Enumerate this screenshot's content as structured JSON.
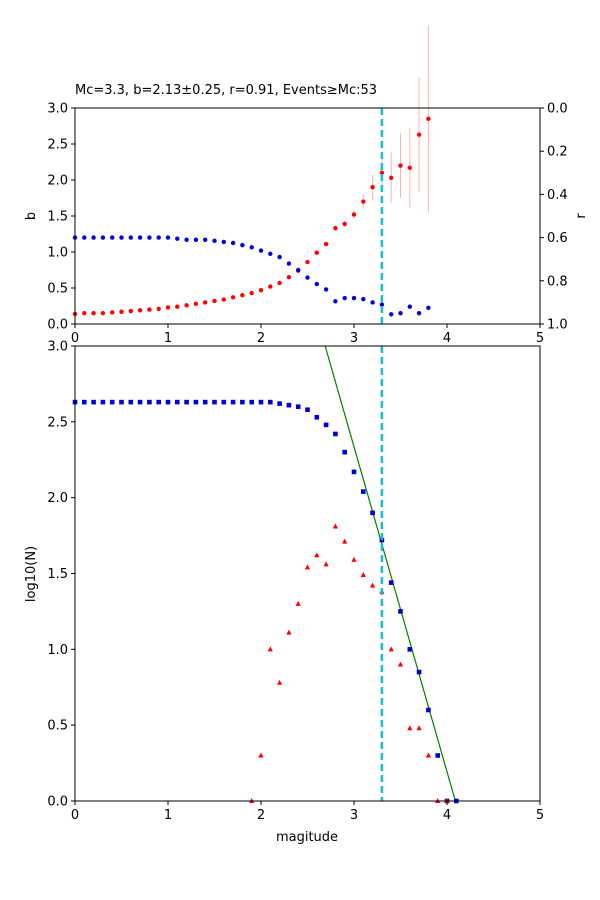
{
  "chart_data": [
    {
      "type": "scatter",
      "title": "Mc=3.3, b=2.13±0.25, r=0.91, Events≥Mc:53",
      "xlabel": "",
      "ylabel": "b",
      "y2label": "r",
      "xlim": [
        0,
        5
      ],
      "ylim": [
        0,
        3.0
      ],
      "y2lim": [
        1.0,
        0.0
      ],
      "y2_inverted": true,
      "xticks": [
        "0",
        "1",
        "2",
        "3",
        "4",
        "5"
      ],
      "yticks": [
        "0.0",
        "0.5",
        "1.0",
        "1.5",
        "2.0",
        "2.5",
        "3.0"
      ],
      "y2ticks": [
        "0.0",
        "0.2",
        "0.4",
        "0.6",
        "0.8",
        "1.0"
      ],
      "mc_line": 3.3,
      "series": [
        {
          "color": "#ff0000",
          "marker": "dot",
          "axis": "left",
          "x": [
            0.0,
            0.1,
            0.2,
            0.3,
            0.4,
            0.5,
            0.6,
            0.7,
            0.8,
            0.9,
            1.0,
            1.1,
            1.2,
            1.3,
            1.4,
            1.5,
            1.6,
            1.7,
            1.8,
            1.9,
            2.0,
            2.1,
            2.2,
            2.3,
            2.4,
            2.5,
            2.6,
            2.7,
            2.8,
            2.9,
            3.0,
            3.1,
            3.2,
            3.3,
            3.4,
            3.5,
            3.6,
            3.7,
            3.8
          ],
          "y": [
            0.14,
            0.15,
            0.15,
            0.15,
            0.16,
            0.17,
            0.18,
            0.19,
            0.2,
            0.21,
            0.23,
            0.24,
            0.26,
            0.28,
            0.3,
            0.32,
            0.34,
            0.37,
            0.4,
            0.43,
            0.47,
            0.52,
            0.57,
            0.65,
            0.74,
            0.86,
            0.99,
            1.11,
            1.33,
            1.39,
            1.52,
            1.7,
            1.9,
            2.1,
            2.03,
            2.2,
            2.17,
            2.63,
            2.85
          ],
          "err": [
            0,
            0,
            0,
            0,
            0,
            0,
            0,
            0,
            0,
            0,
            0,
            0,
            0,
            0,
            0,
            0,
            0,
            0,
            0,
            0,
            0,
            0,
            0,
            0,
            0,
            0,
            0,
            0,
            0,
            0.04,
            0.06,
            0.1,
            0.18,
            0.25,
            0.35,
            0.45,
            0.55,
            0.8,
            1.3
          ]
        },
        {
          "color": "#0000cc",
          "marker": "dot",
          "axis": "right",
          "x": [
            0.0,
            0.1,
            0.2,
            0.3,
            0.4,
            0.5,
            0.6,
            0.7,
            0.8,
            0.9,
            1.0,
            1.1,
            1.2,
            1.3,
            1.4,
            1.5,
            1.6,
            1.7,
            1.8,
            1.9,
            2.0,
            2.1,
            2.2,
            2.3,
            2.4,
            2.5,
            2.6,
            2.7,
            2.8,
            2.9,
            3.0,
            3.1,
            3.2,
            3.3,
            3.4,
            3.5,
            3.6,
            3.7,
            3.8
          ],
          "y": [
            0.6,
            0.6,
            0.6,
            0.6,
            0.6,
            0.6,
            0.6,
            0.6,
            0.6,
            0.6,
            0.6,
            0.605,
            0.61,
            0.61,
            0.61,
            0.615,
            0.62,
            0.625,
            0.635,
            0.645,
            0.66,
            0.675,
            0.69,
            0.72,
            0.75,
            0.785,
            0.815,
            0.84,
            0.895,
            0.88,
            0.88,
            0.885,
            0.9,
            0.91,
            0.955,
            0.95,
            0.92,
            0.95,
            0.925
          ]
        }
      ]
    },
    {
      "type": "scatter",
      "title": "",
      "xlabel": "magitude",
      "ylabel": "log10(N)",
      "xlim": [
        0,
        5
      ],
      "ylim": [
        0,
        3.0
      ],
      "xticks": [
        "0",
        "1",
        "2",
        "3",
        "4",
        "5"
      ],
      "yticks": [
        "0.0",
        "0.5",
        "1.0",
        "1.5",
        "2.0",
        "2.5",
        "3.0"
      ],
      "mc_line": 3.3,
      "fit_line": {
        "color": "#008000",
        "x": [
          2.69,
          4.09
        ],
        "y": [
          3.0,
          0.0
        ]
      },
      "series": [
        {
          "color": "#0000cc",
          "marker": "square",
          "x": [
            0.0,
            0.1,
            0.2,
            0.3,
            0.4,
            0.5,
            0.6,
            0.7,
            0.8,
            0.9,
            1.0,
            1.1,
            1.2,
            1.3,
            1.4,
            1.5,
            1.6,
            1.7,
            1.8,
            1.9,
            2.0,
            2.1,
            2.2,
            2.3,
            2.4,
            2.5,
            2.6,
            2.7,
            2.8,
            2.9,
            3.0,
            3.1,
            3.2,
            3.3,
            3.4,
            3.5,
            3.6,
            3.7,
            3.8,
            3.9,
            4.0,
            4.1
          ],
          "y": [
            2.63,
            2.63,
            2.63,
            2.63,
            2.63,
            2.63,
            2.63,
            2.63,
            2.63,
            2.63,
            2.63,
            2.63,
            2.63,
            2.63,
            2.63,
            2.63,
            2.63,
            2.63,
            2.63,
            2.63,
            2.63,
            2.63,
            2.62,
            2.61,
            2.6,
            2.58,
            2.53,
            2.48,
            2.42,
            2.3,
            2.17,
            2.04,
            1.9,
            1.72,
            1.44,
            1.25,
            1.0,
            0.85,
            0.6,
            0.3,
            0.0,
            0.0
          ]
        },
        {
          "color": "#ff0000",
          "marker": "triangle",
          "x": [
            1.9,
            2.0,
            2.1,
            2.2,
            2.3,
            2.4,
            2.5,
            2.6,
            2.7,
            2.8,
            2.9,
            3.0,
            3.1,
            3.2,
            3.3,
            3.4,
            3.5,
            3.6,
            3.7,
            3.8,
            3.9,
            4.0
          ],
          "y": [
            0.0,
            0.3,
            1.0,
            0.78,
            1.11,
            1.3,
            1.54,
            1.62,
            1.56,
            1.81,
            1.71,
            1.59,
            1.49,
            1.42,
            1.38,
            1.0,
            0.9,
            0.48,
            0.48,
            0.3,
            0.0,
            0.0
          ]
        }
      ]
    }
  ]
}
